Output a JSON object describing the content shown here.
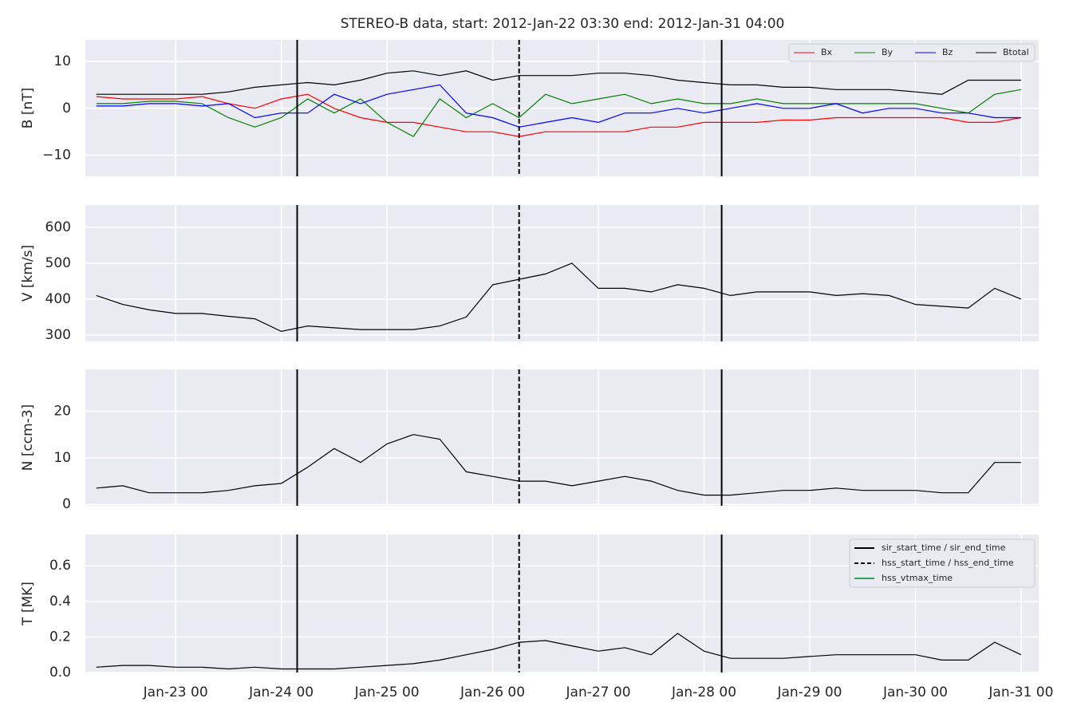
{
  "title": "STEREO-B data, start: 2012-Jan-22 03:30  end: 2012-Jan-31 04:00",
  "x": [
    "Jan-22 06:00",
    "Jan-22 12:00",
    "Jan-22 18:00",
    "Jan-23 00:00",
    "Jan-23 06:00",
    "Jan-23 12:00",
    "Jan-23 18:00",
    "Jan-24 00:00",
    "Jan-24 06:00",
    "Jan-24 12:00",
    "Jan-24 18:00",
    "Jan-25 00:00",
    "Jan-25 06:00",
    "Jan-25 12:00",
    "Jan-25 18:00",
    "Jan-26 00:00",
    "Jan-26 06:00",
    "Jan-26 12:00",
    "Jan-26 18:00",
    "Jan-27 00:00",
    "Jan-27 06:00",
    "Jan-27 12:00",
    "Jan-27 18:00",
    "Jan-28 00:00",
    "Jan-28 06:00",
    "Jan-28 12:00",
    "Jan-28 18:00",
    "Jan-29 00:00",
    "Jan-29 06:00",
    "Jan-29 12:00",
    "Jan-29 18:00",
    "Jan-30 00:00",
    "Jan-30 06:00",
    "Jan-30 12:00",
    "Jan-30 18:00",
    "Jan-31 00:00"
  ],
  "xlim": [
    "Jan-22 03:30",
    "Jan-31 04:00"
  ],
  "xticks": [
    {
      "value": "Jan-23 00:00",
      "label": "Jan-23 00"
    },
    {
      "value": "Jan-24 00:00",
      "label": "Jan-24 00"
    },
    {
      "value": "Jan-25 00:00",
      "label": "Jan-25 00"
    },
    {
      "value": "Jan-26 00:00",
      "label": "Jan-26 00"
    },
    {
      "value": "Jan-27 00:00",
      "label": "Jan-27 00"
    },
    {
      "value": "Jan-28 00:00",
      "label": "Jan-28 00"
    },
    {
      "value": "Jan-29 00:00",
      "label": "Jan-29 00"
    },
    {
      "value": "Jan-30 00:00",
      "label": "Jan-30 00"
    },
    {
      "value": "Jan-31 00:00",
      "label": "Jan-31 00"
    }
  ],
  "grid": true,
  "events": [
    {
      "time": "Jan-24 03:36",
      "style": "solid"
    },
    {
      "time": "Jan-26 06:00",
      "style": "dashed"
    },
    {
      "time": "Jan-28 04:00",
      "style": "solid"
    }
  ],
  "chart_data": [
    {
      "type": "line",
      "ylabel": "B [nT]",
      "ylim": [
        -14.5,
        14.6
      ],
      "yticks": [
        {
          "value": -10,
          "label": "−10"
        },
        0,
        10
      ],
      "legend": "upper right",
      "series": [
        {
          "name": "Bx",
          "color": "#ff0000",
          "values": [
            2.5,
            2,
            2,
            2,
            2.5,
            1,
            0,
            2,
            3,
            0,
            -2,
            -3,
            -3,
            -4,
            -5,
            -5,
            -6,
            -5,
            -5,
            -5,
            -5,
            -4,
            -4,
            -3,
            -3,
            -3,
            -2.5,
            -2.5,
            -2,
            -2,
            -2,
            -2,
            -2,
            -3,
            -3,
            -2
          ]
        },
        {
          "name": "By",
          "color": "#008000",
          "values": [
            1,
            1,
            1.5,
            1.5,
            1,
            -2,
            -4,
            -2,
            2,
            -1,
            2,
            -3,
            -6,
            2,
            -2,
            1,
            -2,
            3,
            1,
            2,
            3,
            1,
            2,
            1,
            1,
            2,
            1,
            1,
            1,
            1,
            1,
            1,
            0,
            -1,
            3,
            4
          ]
        },
        {
          "name": "Bz",
          "color": "#0000ff",
          "values": [
            0.5,
            0.5,
            1,
            1,
            0.5,
            1,
            -2,
            -1,
            -1,
            3,
            1,
            3,
            4,
            5,
            -1,
            -2,
            -4,
            -3,
            -2,
            -3,
            -1,
            -1,
            0,
            -1,
            0,
            1,
            0,
            0,
            1,
            -1,
            0,
            0,
            -1,
            -1,
            -2,
            -2
          ]
        },
        {
          "name": "Btotal",
          "color": "#000000",
          "values": [
            3,
            3,
            3,
            3,
            3,
            3.5,
            4.5,
            5,
            5.5,
            5,
            6,
            7.5,
            8,
            7,
            8,
            6,
            7,
            7,
            7,
            7.5,
            7.5,
            7,
            6,
            5.5,
            5,
            5,
            4.5,
            4.5,
            4,
            4,
            4,
            3.5,
            3,
            6,
            6,
            6
          ]
        }
      ]
    },
    {
      "type": "line",
      "ylabel": "V [km/s]",
      "ylim": [
        282,
        662
      ],
      "yticks": [
        300,
        400,
        500,
        600
      ],
      "series": [
        {
          "color": "#000000",
          "values": [
            410,
            385,
            370,
            360,
            360,
            352,
            345,
            310,
            325,
            320,
            315,
            315,
            315,
            325,
            350,
            440,
            455,
            470,
            500,
            430,
            430,
            420,
            440,
            430,
            410,
            420,
            420,
            420,
            410,
            415,
            410,
            385,
            380,
            375,
            430,
            400
          ]
        }
      ]
    },
    {
      "type": "line",
      "ylabel": "N [ccm-3]",
      "ylim": [
        -0.3,
        29
      ],
      "yticks": [
        0,
        10,
        20
      ],
      "series": [
        {
          "color": "#000000",
          "values": [
            3.5,
            4,
            2.5,
            2.5,
            2.5,
            3,
            4,
            4.5,
            8,
            12,
            9,
            13,
            15,
            14,
            7,
            6,
            5,
            5,
            4,
            5,
            6,
            5,
            3,
            2,
            2,
            2.5,
            3,
            3,
            3.5,
            3,
            3,
            3,
            2.5,
            2.5,
            9,
            9
          ]
        }
      ]
    },
    {
      "type": "line",
      "ylabel": "T [MK]",
      "ylim": [
        0,
        0.776
      ],
      "yticks": [
        {
          "value": 0,
          "label": "0.0"
        },
        0.2,
        0.4,
        0.6
      ],
      "series": [
        {
          "color": "#000000",
          "values": [
            0.03,
            0.04,
            0.04,
            0.03,
            0.03,
            0.02,
            0.03,
            0.02,
            0.02,
            0.02,
            0.03,
            0.04,
            0.05,
            0.07,
            0.1,
            0.13,
            0.17,
            0.18,
            0.15,
            0.12,
            0.14,
            0.1,
            0.22,
            0.12,
            0.08,
            0.08,
            0.08,
            0.09,
            0.1,
            0.1,
            0.1,
            0.1,
            0.07,
            0.07,
            0.17,
            0.1
          ]
        }
      ],
      "event_legend": [
        {
          "name": "sir_start_time / sir_end_time",
          "color": "#000000",
          "style": "solid"
        },
        {
          "name": "hss_start_time / hss_end_time",
          "color": "#000000",
          "style": "dashed"
        },
        {
          "name": "hss_vtmax_time",
          "color": "#2ca25f",
          "style": "solid"
        }
      ]
    }
  ]
}
